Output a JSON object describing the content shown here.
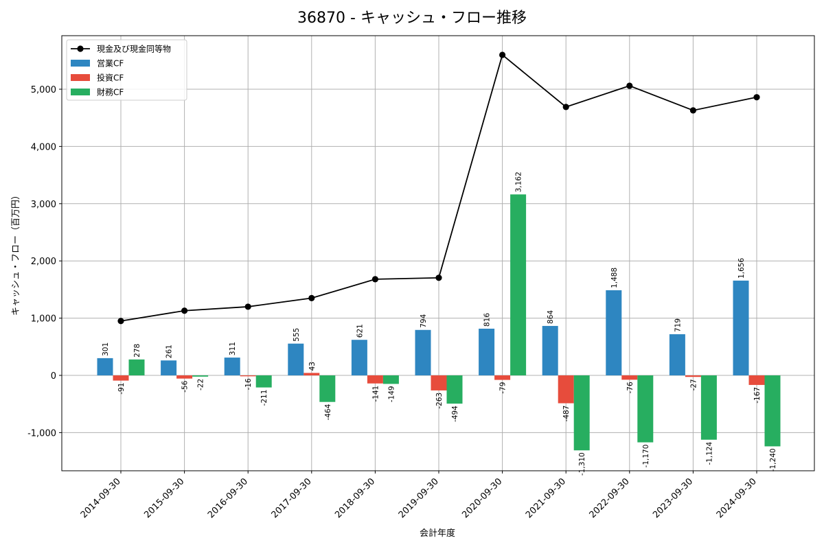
{
  "colors": {
    "operating": "#2e86c1",
    "investing": "#e74c3c",
    "financing": "#27ae60",
    "cash_line": "#000000",
    "grid": "#b0b0b0",
    "frame": "#000000"
  },
  "chart_data": {
    "type": "bar",
    "title": "36870 - キャッシュ・フロー推移",
    "xlabel": "会計年度",
    "ylabel": "キャッシュ・フロー（百万円）",
    "ylim": [
      -1660,
      5840
    ],
    "yticks": [
      -1000,
      0,
      1000,
      2000,
      3000,
      4000,
      5000
    ],
    "ytick_labels": [
      "-1,000",
      "0",
      "1,000",
      "2,000",
      "3,000",
      "4,000",
      "5,000"
    ],
    "grid": true,
    "legend_position": "top-left",
    "categories": [
      "2014-09-30",
      "2015-09-30",
      "2016-09-30",
      "2017-09-30",
      "2018-09-30",
      "2019-09-30",
      "2020-09-30",
      "2021-09-30",
      "2022-09-30",
      "2023-09-30",
      "2024-09-30"
    ],
    "series": [
      {
        "name": "営業CF",
        "kind": "bar",
        "color_key": "operating",
        "values": [
          301,
          261,
          311,
          555,
          621,
          794,
          816,
          864,
          1488,
          719,
          1656
        ],
        "labels": [
          "301",
          "261",
          "311",
          "555",
          "621",
          "794",
          "816",
          "864",
          "1,488",
          "719",
          "1,656"
        ]
      },
      {
        "name": "投資CF",
        "kind": "bar",
        "color_key": "investing",
        "values": [
          -91,
          -56,
          -16,
          43,
          -141,
          -263,
          -79,
          -487,
          -76,
          -27,
          -167
        ],
        "labels": [
          "-91",
          "-56",
          "-16",
          "43",
          "-141",
          "-263",
          "-79",
          "-487",
          "-76",
          "-27",
          "-167"
        ]
      },
      {
        "name": "財務CF",
        "kind": "bar",
        "color_key": "financing",
        "values": [
          278,
          -22,
          -211,
          -464,
          -149,
          -494,
          3162,
          -1310,
          -1170,
          -1124,
          -1240
        ],
        "labels": [
          "278",
          "-22",
          "-211",
          "-464",
          "-149",
          "-494",
          "3,162",
          "-1,310",
          "-1,170",
          "-1,124",
          "-1,240"
        ]
      },
      {
        "name": "現金及び現金同等物",
        "kind": "line",
        "color_key": "cash_line",
        "values": [
          950,
          1130,
          1200,
          1350,
          1680,
          1705,
          5600,
          4690,
          5060,
          4630,
          4860
        ]
      }
    ]
  }
}
